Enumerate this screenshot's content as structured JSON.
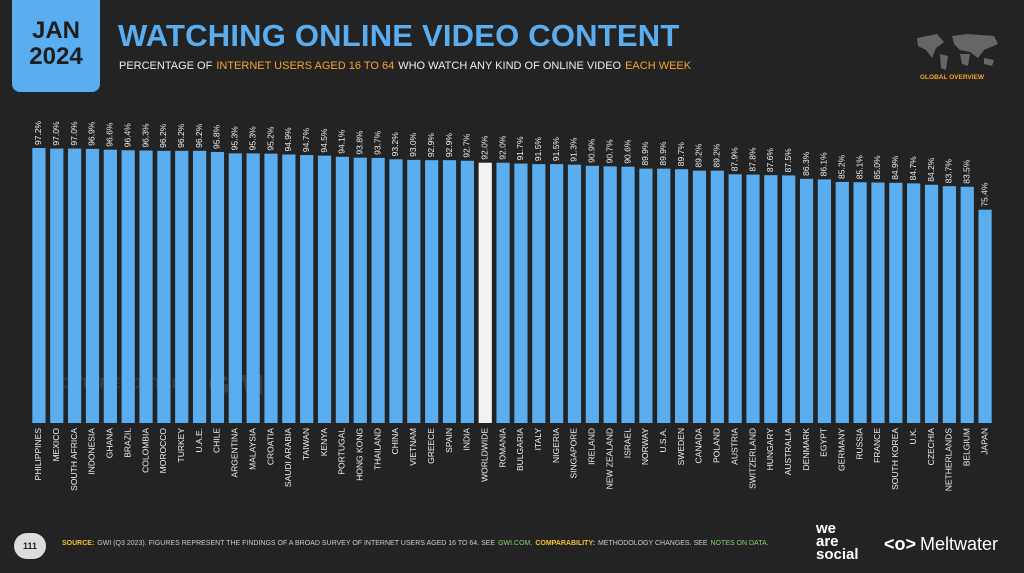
{
  "header": {
    "date": [
      "JAN",
      "2024"
    ],
    "title": "WATCHING ONLINE VIDEO CONTENT",
    "subtitle": [
      "PERCENTAGE OF",
      "INTERNET USERS AGED 16 TO 64",
      "WHO WATCH ANY KIND OF ONLINE VIDEO",
      "EACH WEEK"
    ],
    "badge": "GLOBAL OVERVIEW"
  },
  "watermark": [
    "DATAREPORTAL",
    "GWI."
  ],
  "chart_data": {
    "type": "bar",
    "categories": [
      "PHILIPPINES",
      "MEXICO",
      "SOUTH AFRICA",
      "INDONESIA",
      "GHANA",
      "BRAZIL",
      "COLOMBIA",
      "MOROCCO",
      "TURKEY",
      "U.A.E.",
      "CHILE",
      "ARGENTINA",
      "MALAYSIA",
      "CROATIA",
      "SAUDI ARABIA",
      "TAIWAN",
      "KENYA",
      "PORTUGAL",
      "HONG KONG",
      "THAILAND",
      "CHINA",
      "VIETNAM",
      "GREECE",
      "SPAIN",
      "INDIA",
      "WORLDWIDE",
      "ROMANIA",
      "BULGARIA",
      "ITALY",
      "NIGERIA",
      "SINGAPORE",
      "IRELAND",
      "NEW ZEALAND",
      "ISRAEL",
      "NORWAY",
      "U.S.A.",
      "SWEDEN",
      "CANADA",
      "POLAND",
      "AUSTRIA",
      "SWITZERLAND",
      "HUNGARY",
      "AUSTRALIA",
      "DENMARK",
      "EGYPT",
      "GERMANY",
      "RUSSIA",
      "FRANCE",
      "SOUTH KOREA",
      "U.K.",
      "CZECHIA",
      "NETHERLANDS",
      "BELGIUM",
      "JAPAN"
    ],
    "values": [
      97.2,
      97.0,
      97.0,
      96.9,
      96.6,
      96.4,
      96.3,
      96.2,
      96.2,
      96.2,
      95.8,
      95.3,
      95.3,
      95.2,
      94.9,
      94.7,
      94.5,
      94.1,
      93.8,
      93.7,
      93.2,
      93.0,
      92.9,
      92.9,
      92.7,
      92.0,
      92.0,
      91.7,
      91.5,
      91.5,
      91.3,
      90.9,
      90.7,
      90.6,
      89.9,
      89.9,
      89.7,
      89.2,
      89.2,
      87.9,
      87.8,
      87.6,
      87.5,
      86.3,
      86.1,
      85.2,
      85.1,
      85.0,
      84.9,
      84.7,
      84.2,
      83.7,
      83.5,
      75.4
    ],
    "value_labels": [
      "97.2%",
      "97.0%",
      "97.0%",
      "96.9%",
      "96.6%",
      "96.4%",
      "96.3%",
      "96.2%",
      "96.2%",
      "96.2%",
      "95.8%",
      "95.3%",
      "95.3%",
      "95.2%",
      "94.9%",
      "94.7%",
      "94.5%",
      "94.1%",
      "93.8%",
      "93.7%",
      "93.2%",
      "93.0%",
      "92.9%",
      "92.9%",
      "92.7%",
      "92.0%",
      "92.0%",
      "91.7%",
      "91.5%",
      "91.5%",
      "91.3%",
      "90.9%",
      "90.7%",
      "90.6%",
      "89.9%",
      "89.9%",
      "89.7%",
      "89.2%",
      "89.2%",
      "87.9%",
      "87.8%",
      "87.6%",
      "87.5%",
      "86.3%",
      "86.1%",
      "85.2%",
      "85.1%",
      "85.0%",
      "84.9%",
      "84.7%",
      "84.2%",
      "83.7%",
      "83.5%",
      "75.4%"
    ],
    "color": "#5aaef0",
    "highlight": "WORLDWIDE",
    "highlight_color": "#f2f2f2"
  },
  "footer": {
    "page": "111",
    "source_label": "SOURCE:",
    "source_text": "GWI (Q3 2023). FIGURES REPRESENT THE FINDINGS OF A BROAD SURVEY OF INTERNET USERS AGED 16 TO 64. SEE",
    "source_link": "GWI.COM.",
    "comparability_label": "COMPARABILITY:",
    "comparability_text": "METHODOLOGY CHANGES. SEE",
    "notes_link": "NOTES ON DATA.",
    "brand1": [
      "we",
      "are",
      "social"
    ],
    "brand2": "Meltwater"
  }
}
